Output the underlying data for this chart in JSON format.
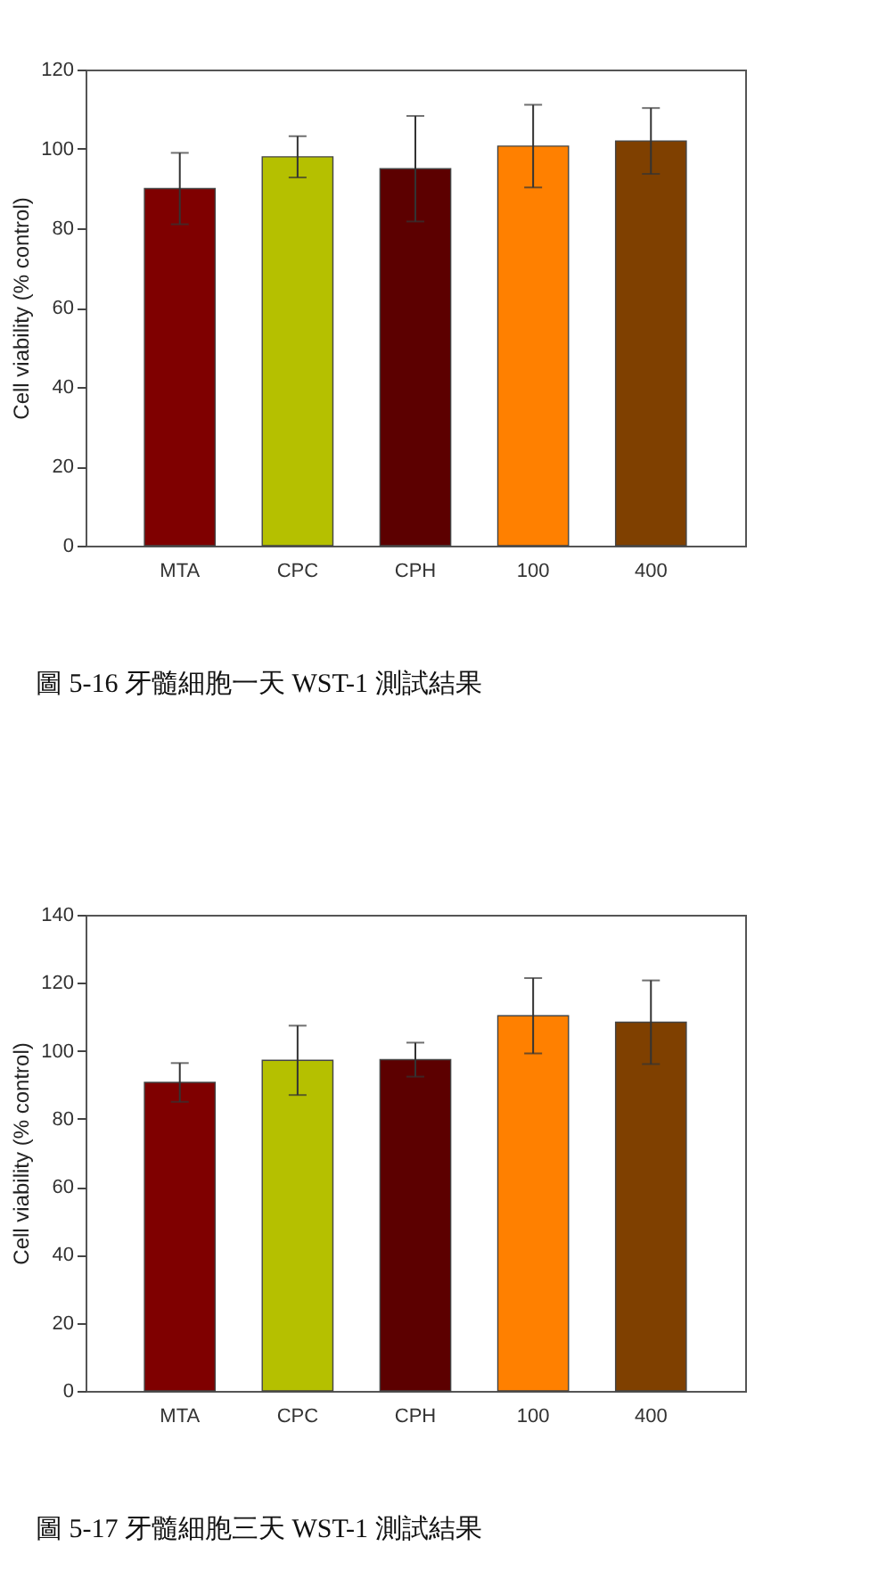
{
  "chart_data": [
    {
      "type": "bar",
      "categories": [
        "MTA",
        "CPC",
        "CPH",
        "100",
        "400"
      ],
      "values": [
        90,
        98,
        95,
        100.7,
        102
      ],
      "errors": [
        9,
        5.2,
        13.3,
        10.4,
        8.3
      ],
      "colors": [
        "#7f0000",
        "#b5c000",
        "#5c0000",
        "#ff8000",
        "#7f4000"
      ],
      "ylabel": "Cell viability (% control)",
      "ylim": [
        0,
        120
      ],
      "yticks": [
        0,
        20,
        40,
        60,
        80,
        100,
        120
      ],
      "grid": false,
      "annotations": [
        "圖 5-16 牙髓細胞一天 WST-1 測試結果"
      ]
    },
    {
      "type": "bar",
      "categories": [
        "MTA",
        "CPC",
        "CPH",
        "100",
        "400"
      ],
      "values": [
        90.7,
        97.2,
        97.4,
        110.3,
        108.4
      ],
      "errors": [
        5.7,
        10.2,
        5,
        11.1,
        12.3
      ],
      "colors": [
        "#7f0000",
        "#b5c000",
        "#5c0000",
        "#ff8000",
        "#7f4000"
      ],
      "ylabel": "Cell viability (% control)",
      "ylim": [
        0,
        140
      ],
      "yticks": [
        0,
        20,
        40,
        60,
        80,
        100,
        120,
        140
      ],
      "grid": false,
      "annotations": [
        "圖 5-17 牙髓細胞三天 WST-1 測試結果"
      ]
    }
  ]
}
